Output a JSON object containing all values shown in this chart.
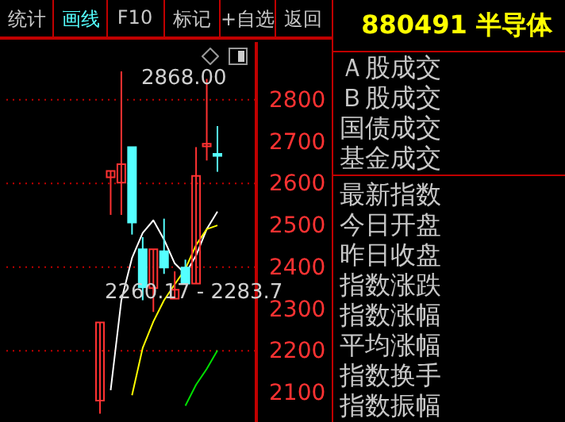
{
  "chart_data": {
    "type": "candlestick",
    "title": "880491 半导体",
    "categories": [
      null,
      null,
      null,
      null,
      null,
      null,
      null,
      null,
      null,
      null,
      null,
      null
    ],
    "ohlc": [
      [
        2081,
        2268,
        2050,
        2268
      ],
      [
        2615,
        2630,
        2525,
        2630
      ],
      [
        2602,
        2868,
        2525,
        2646
      ],
      [
        2687,
        2687,
        2478,
        2507
      ],
      [
        2443,
        2472,
        2321,
        2352
      ],
      [
        2350,
        2443,
        2293,
        2443
      ],
      [
        2438,
        2516,
        2384,
        2399
      ],
      [
        2325,
        2390,
        2325,
        2346
      ],
      [
        2399,
        2418,
        2361,
        2361
      ],
      [
        2361,
        2687,
        2361,
        2618
      ],
      [
        2689,
        2850,
        2655,
        2695
      ],
      [
        2671,
        2737,
        2628,
        2666
      ]
    ],
    "colors": [
      "#ff3232",
      "#ff3232",
      "#ff3232",
      "#54ffff",
      "#54ffff",
      "#ff3232",
      "#54ffff",
      "#ff3232",
      "#54ffff",
      "#ff3232",
      "#ff3232",
      "#54ffff"
    ],
    "series": [
      {
        "type": "line",
        "color": "#ffffff",
        "values": [
          null,
          2106,
          2321,
          2422,
          2482,
          2512,
          2466,
          2409,
          2384,
          2428,
          2491,
          2533
        ]
      },
      {
        "type": "line",
        "color": "#ffff00",
        "values": [
          null,
          null,
          null,
          2094,
          2207,
          2270,
          2321,
          2359,
          2396,
          2453,
          2491,
          2500
        ]
      },
      {
        "type": "line",
        "color": "#00e000",
        "values": [
          null,
          null,
          null,
          null,
          null,
          null,
          null,
          null,
          2069,
          2119,
          2157,
          2201
        ]
      }
    ],
    "ylim": [
      2030,
      2940
    ],
    "yticks": [
      2100,
      2200,
      2300,
      2400,
      2500,
      2600,
      2700,
      2800
    ],
    "ref_lines": [
      {
        "axis": "y",
        "value": 2800,
        "color": "#c00000",
        "line_style": "dotted"
      },
      {
        "axis": "y",
        "value": 2600,
        "color": "#c00000",
        "line_style": "dotted"
      },
      {
        "axis": "y",
        "value": 2400,
        "color": "#c00000",
        "line_style": "dotted"
      },
      {
        "axis": "y",
        "value": 2200,
        "color": "#c00000",
        "line_style": "dotted"
      }
    ],
    "annotations": [
      "统计",
      "画线",
      "F10",
      "标记",
      "+自选",
      "返回",
      "2868.00",
      "2260.17 - 2283.7",
      "Ａ股成交",
      "Ｂ股成交",
      "国债成交",
      "基金成交",
      "最新指数",
      "今日开盘",
      "昨日收盘",
      "指数涨跌",
      "指数涨幅",
      "平均涨幅",
      "指数换手",
      "指数振幅"
    ]
  }
}
